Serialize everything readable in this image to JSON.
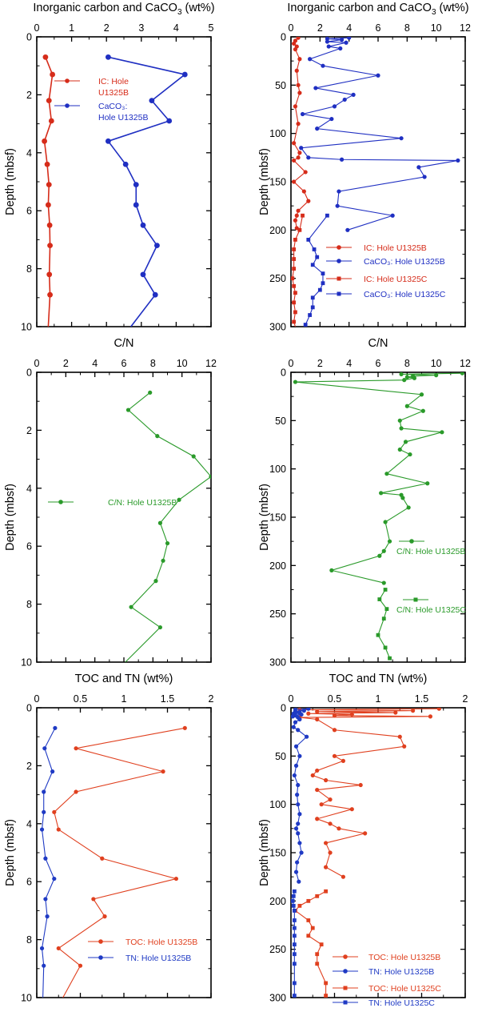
{
  "colors": {
    "ic": "#d62c1a",
    "caco3": "#1f2fc2",
    "cn": "#2a9a2a",
    "toc": "#e0401f",
    "tn": "#1f3ac4",
    "axis": "#000000"
  },
  "chart_data": [
    {
      "id": "p1",
      "type": "line",
      "title": "Inorganic carbon and CaCO",
      "title_sub": "3",
      "title_suffix": " (wt%)",
      "ylabel": "Depth (mbsf)",
      "xlim": [
        0,
        5
      ],
      "ylim": [
        10,
        0
      ],
      "xticks": [
        "0",
        "1",
        "2",
        "3",
        "4",
        "5"
      ],
      "yticks": [
        "0",
        "2",
        "4",
        "6",
        "8",
        "10"
      ],
      "series": [
        {
          "key": "ic",
          "name": [
            "IC: Hole",
            "U1325B"
          ],
          "marker": "circle",
          "x": [
            0.25,
            0.45,
            0.35,
            0.42,
            0.22,
            0.3,
            0.35,
            0.33,
            0.37,
            0.38,
            0.36,
            0.38,
            0.33
          ],
          "y": [
            0.7,
            1.3,
            2.2,
            2.9,
            3.6,
            4.4,
            5.1,
            5.8,
            6.5,
            7.2,
            8.2,
            8.9,
            10
          ]
        },
        {
          "key": "caco3",
          "name": [
            "CaCO₃:",
            "Hole U1325B"
          ],
          "marker": "circle",
          "x": [
            2.05,
            4.25,
            3.3,
            3.8,
            2.05,
            2.55,
            2.85,
            2.85,
            3.05,
            3.45,
            3.05,
            3.4,
            2.7
          ],
          "y": [
            0.7,
            1.3,
            2.2,
            2.9,
            3.6,
            4.4,
            5.1,
            5.8,
            6.5,
            7.2,
            8.2,
            8.9,
            10
          ]
        }
      ]
    },
    {
      "id": "p2",
      "type": "line",
      "title": "Inorganic carbon and CaCO",
      "title_sub": "3",
      "title_suffix": " (wt%)",
      "ylabel": "Depth (mbsf)",
      "xlim": [
        0,
        12
      ],
      "ylim": [
        300,
        0
      ],
      "xticks": [
        "0",
        "2",
        "4",
        "6",
        "8",
        "10",
        "12"
      ],
      "yticks": [
        "0",
        "50",
        "100",
        "150",
        "200",
        "250",
        "300"
      ],
      "series": [
        {
          "key": "ic",
          "name": "IC: Hole U1325B",
          "marker": "circle",
          "x": [
            0.5,
            0.3,
            0.2,
            0.4,
            0.3,
            0.6,
            0.4,
            0.5,
            0.6,
            0.3,
            0.5,
            0.2,
            0.6,
            0.5,
            0.2,
            1.0,
            0.2,
            0.9,
            1.2,
            0.5,
            0.4,
            0.3,
            0.4
          ],
          "y": [
            1,
            4,
            7,
            10,
            13,
            23,
            35,
            50,
            58,
            72,
            90,
            110,
            120,
            125,
            128,
            140,
            150,
            160,
            170,
            180,
            185,
            190,
            198
          ]
        },
        {
          "key": "caco3",
          "name": "CaCO₃: Hole U1325B",
          "marker": "circle",
          "x": [
            4.0,
            2.5,
            3.5,
            2.5,
            3.8,
            2.6,
            3.4,
            1.3,
            2.2,
            6.0,
            1.7,
            4.3,
            3.7,
            3.0,
            0.8,
            2.8,
            1.8,
            7.6,
            0.7,
            1.2,
            3.5,
            11.5,
            8.8,
            9.2,
            3.3,
            3.2,
            7.0,
            3.9
          ],
          "y": [
            1,
            2,
            3,
            5,
            6,
            10,
            12,
            23,
            30,
            40,
            53,
            60,
            65,
            72,
            80,
            85,
            95,
            105,
            115,
            125,
            127,
            128,
            135,
            145,
            160,
            175,
            185,
            200
          ]
        },
        {
          "key": "ic",
          "name": "IC: Hole U1325C",
          "marker": "square",
          "x": [
            0.8,
            0.6,
            0.3,
            0.2,
            0.2,
            0.2,
            0.1,
            0.2,
            0.3,
            0.2,
            0.3,
            0.2,
            0.3
          ],
          "y": [
            185,
            200,
            210,
            220,
            230,
            240,
            250,
            258,
            265,
            275,
            285,
            295,
            300
          ]
        },
        {
          "key": "caco3",
          "name": "CaCO₃: Hole U1325C",
          "marker": "square",
          "x": [
            2.5,
            1.2,
            1.6,
            1.8,
            1.5,
            2.2,
            2.2,
            2.0,
            1.5,
            1.5,
            1.3,
            1.0
          ],
          "y": [
            185,
            210,
            220,
            228,
            236,
            245,
            255,
            262,
            270,
            280,
            288,
            298
          ]
        }
      ]
    },
    {
      "id": "p3",
      "type": "line",
      "title": "C/N",
      "ylabel": "Depth (mbsf)",
      "xlim": [
        0,
        12
      ],
      "ylim": [
        10,
        0
      ],
      "xticks": [
        "0",
        "2",
        "4",
        "6",
        "8",
        "10",
        "12"
      ],
      "yticks": [
        "0",
        "2",
        "4",
        "6",
        "8",
        "10"
      ],
      "series": [
        {
          "key": "cn",
          "name": "C/N: Hole U1325B",
          "marker": "circle",
          "x": [
            7.8,
            6.3,
            8.3,
            10.8,
            12.0,
            9.8,
            8.5,
            9.0,
            8.7,
            8.2,
            6.5,
            8.5,
            6.1
          ],
          "y": [
            0.7,
            1.3,
            2.2,
            2.9,
            3.6,
            4.4,
            5.2,
            5.9,
            6.5,
            7.2,
            8.1,
            8.8,
            10
          ]
        }
      ]
    },
    {
      "id": "p4",
      "type": "line",
      "title": "C/N",
      "ylabel": "Depth (mbsf)",
      "xlim": [
        0,
        12
      ],
      "ylim": [
        300,
        0
      ],
      "xticks": [
        "0",
        "2",
        "4",
        "6",
        "8",
        "10",
        "12"
      ],
      "yticks": [
        "0",
        "50",
        "100",
        "150",
        "200",
        "250",
        "300"
      ],
      "series": [
        {
          "key": "cn",
          "name": "C/N: Hole U1325B",
          "marker": "circle",
          "x": [
            11.8,
            7.6,
            10.0,
            8.4,
            8.0,
            8.5,
            7.8,
            0.3,
            9.0,
            8.0,
            9.1,
            7.5,
            7.6,
            10.4,
            7.9,
            7.5,
            8.2,
            6.6,
            9.4,
            6.2,
            7.6,
            7.7,
            8.1,
            6.5,
            6.8,
            6.4,
            6.1,
            2.8,
            6.4
          ],
          "y": [
            1,
            2,
            3,
            4,
            5,
            6,
            8,
            10,
            23,
            35,
            40,
            50,
            58,
            62,
            72,
            80,
            85,
            105,
            115,
            125,
            127,
            130,
            140,
            155,
            175,
            185,
            190,
            205,
            218
          ]
        },
        {
          "key": "cn",
          "name": "C/N: Hole U1325C",
          "marker": "square",
          "x": [
            6.5,
            6.1,
            6.6,
            6.4,
            6.0,
            6.5,
            6.8
          ],
          "y": [
            225,
            235,
            245,
            255,
            272,
            285,
            296
          ]
        }
      ]
    },
    {
      "id": "p5",
      "type": "line",
      "title": "TOC and TN (wt%)",
      "ylabel": "Depth (mbsf)",
      "xlim": [
        0,
        2
      ],
      "ylim": [
        10,
        0
      ],
      "xticks": [
        "0",
        "0.5",
        "1",
        "1.5",
        "2"
      ],
      "yticks": [
        "0",
        "2",
        "4",
        "6",
        "8",
        "10"
      ],
      "series": [
        {
          "key": "toc",
          "name": "TOC: Hole U1325B",
          "marker": "circle",
          "x": [
            1.7,
            0.45,
            1.45,
            0.45,
            0.2,
            0.25,
            0.75,
            1.6,
            0.65,
            0.78,
            0.25,
            0.5,
            0.3
          ],
          "y": [
            0.7,
            1.4,
            2.2,
            2.9,
            3.6,
            4.2,
            5.2,
            5.9,
            6.6,
            7.2,
            8.3,
            8.9,
            10
          ]
        },
        {
          "key": "tn",
          "name": "TN: Hole U1325B",
          "marker": "circle",
          "x": [
            0.21,
            0.09,
            0.18,
            0.08,
            0.08,
            0.06,
            0.1,
            0.2,
            0.1,
            0.12,
            0.06,
            0.08,
            0.07
          ],
          "y": [
            0.7,
            1.4,
            2.2,
            2.9,
            3.6,
            4.2,
            5.2,
            5.9,
            6.6,
            7.2,
            8.3,
            8.9,
            10
          ]
        }
      ]
    },
    {
      "id": "p6",
      "type": "line",
      "title": "TOC and TN (wt%)",
      "ylabel": "Depth (mbsf)",
      "xlim": [
        0,
        2
      ],
      "ylim": [
        300,
        0
      ],
      "xticks": [
        "0",
        "0.5",
        "1",
        "1.5",
        "2"
      ],
      "yticks": [
        "0",
        "50",
        "100",
        "150",
        "200",
        "250",
        "300"
      ],
      "series": [
        {
          "key": "toc",
          "name": "TOC: Hole U1325B",
          "marker": "circle",
          "x": [
            1.7,
            0.1,
            1.4,
            0.3,
            1.2,
            0.2,
            0.7,
            0.5,
            1.6,
            0.1,
            0.3,
            0.5,
            1.25,
            1.3,
            0.5,
            0.6,
            0.3,
            0.25,
            0.4,
            0.8,
            0.3,
            0.45,
            0.35,
            0.7,
            0.3,
            0.45,
            0.55,
            0.85,
            0.4,
            0.45,
            0.4,
            0.6
          ],
          "y": [
            1,
            2,
            3,
            4,
            5,
            6,
            7,
            8,
            9,
            10,
            12,
            23,
            30,
            40,
            50,
            55,
            65,
            70,
            75,
            80,
            85,
            95,
            100,
            105,
            115,
            120,
            125,
            130,
            140,
            150,
            165,
            175
          ]
        },
        {
          "key": "tn",
          "name": "TN: Hole U1325B",
          "marker": "circle",
          "x": [
            0.2,
            0.05,
            0.15,
            0.05,
            0.1,
            0.03,
            0.12,
            0.05,
            0.02,
            0.08,
            0.1,
            0.05,
            0.03,
            0.08,
            0.18,
            0.06,
            0.1,
            0.06,
            0.04,
            0.08,
            0.07,
            0.08,
            0.1,
            0.08,
            0.06,
            0.08,
            0.1,
            0.12,
            0.07,
            0.06,
            0.09
          ],
          "y": [
            1,
            2,
            3,
            4,
            5,
            6,
            7,
            8,
            9,
            10,
            12,
            15,
            20,
            23,
            30,
            40,
            50,
            60,
            70,
            80,
            90,
            100,
            110,
            120,
            125,
            130,
            140,
            150,
            160,
            170,
            180
          ]
        },
        {
          "key": "toc",
          "name": "TOC: Hole U1325C",
          "marker": "square",
          "x": [
            0.4,
            0.3,
            0.2,
            0.1,
            0.05,
            0.2,
            0.25,
            0.2,
            0.35,
            0.3,
            0.3,
            0.4,
            0.4
          ],
          "y": [
            190,
            195,
            200,
            205,
            210,
            220,
            228,
            236,
            245,
            255,
            265,
            285,
            298
          ]
        },
        {
          "key": "tn",
          "name": "TN: Hole U1325C",
          "marker": "square",
          "x": [
            0.04,
            0.03,
            0.02,
            0.03,
            0.04,
            0.04,
            0.04,
            0.04,
            0.04,
            0.04,
            0.04,
            0.04,
            0.04
          ],
          "y": [
            190,
            195,
            200,
            205,
            210,
            220,
            228,
            236,
            245,
            255,
            265,
            285,
            298
          ]
        }
      ]
    }
  ]
}
